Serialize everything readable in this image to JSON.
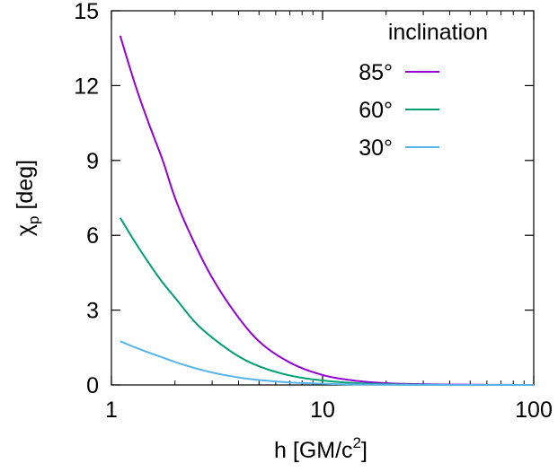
{
  "chart_data": {
    "type": "line",
    "x_scale": "log",
    "xlim": [
      1,
      100
    ],
    "ylim": [
      0,
      15
    ],
    "x_ticks": [
      1,
      10,
      100
    ],
    "x_tick_labels": [
      "1",
      "10",
      "100"
    ],
    "y_ticks": [
      0,
      3,
      6,
      9,
      12,
      15
    ],
    "y_tick_labels": [
      "0",
      "3",
      "6",
      "9",
      "12",
      "15"
    ],
    "xlabel": {
      "main": "h [GM/c",
      "sup": "2",
      "end": "]"
    },
    "ylabel": {
      "main": "χ",
      "sub": "p",
      "end": " [deg]"
    },
    "grid": false,
    "legend": {
      "title": "inclination",
      "placement": "top-right"
    },
    "series": [
      {
        "name": "85°",
        "color": "#9400d3",
        "x": [
          1.1,
          1.3,
          1.5,
          1.75,
          2,
          2.5,
          3,
          4,
          5,
          7,
          10,
          14,
          20,
          30,
          50,
          100
        ],
        "y": [
          14.0,
          12.0,
          10.5,
          9.0,
          7.5,
          5.6,
          4.3,
          2.7,
          1.75,
          0.9,
          0.4,
          0.18,
          0.07,
          0.03,
          0.01,
          0.0
        ]
      },
      {
        "name": "60°",
        "color": "#009e73",
        "x": [
          1.1,
          1.3,
          1.5,
          1.75,
          2,
          2.5,
          3,
          4,
          5,
          7,
          10,
          14,
          20,
          30,
          50,
          100
        ],
        "y": [
          6.7,
          5.7,
          4.9,
          4.1,
          3.5,
          2.5,
          1.9,
          1.15,
          0.75,
          0.38,
          0.18,
          0.08,
          0.03,
          0.01,
          0.0,
          0.0
        ]
      },
      {
        "name": "30°",
        "color": "#56b4e9",
        "x": [
          1.1,
          1.3,
          1.5,
          1.75,
          2,
          2.5,
          3,
          4,
          5,
          7,
          10,
          14,
          20,
          30,
          50,
          100
        ],
        "y": [
          1.75,
          1.5,
          1.3,
          1.1,
          0.92,
          0.67,
          0.5,
          0.3,
          0.2,
          0.1,
          0.05,
          0.02,
          0.01,
          0.0,
          0.0,
          0.0
        ]
      }
    ]
  }
}
